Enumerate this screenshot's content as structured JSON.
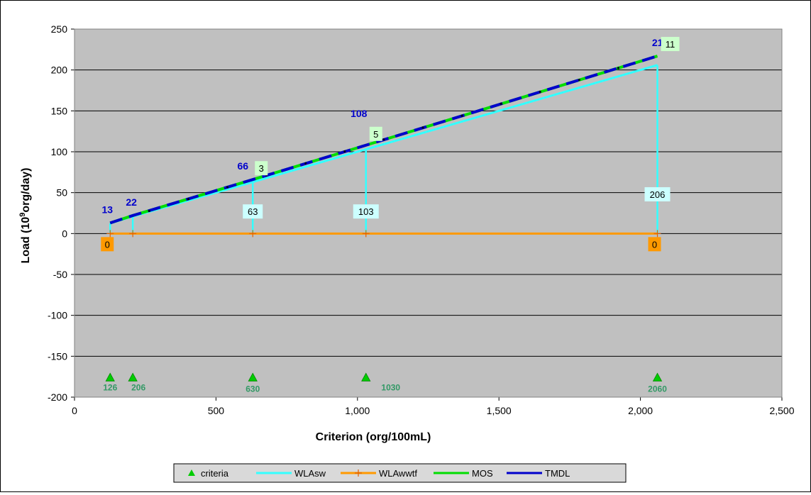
{
  "chart_data": {
    "type": "line",
    "xlabel": "Criterion (org/100mL)",
    "ylabel_prefix": "Load (10",
    "ylabel_sup": "9",
    "ylabel_suffix": "org/day)",
    "xlim": [
      0,
      2500
    ],
    "ylim": [
      -200,
      250
    ],
    "xticks": [
      0,
      500,
      1000,
      1500,
      2000,
      2500
    ],
    "xtick_labels": [
      "0",
      "500",
      "1,000",
      "1,500",
      "2,000",
      "2,500"
    ],
    "yticks": [
      -200,
      -150,
      -100,
      -50,
      0,
      50,
      100,
      150,
      200,
      250
    ],
    "ytick_labels": [
      "-200",
      "-150",
      "-100",
      "-50",
      "0",
      "50",
      "100",
      "150",
      "200",
      "250"
    ],
    "grid": "horizontal",
    "plot_background": "#c0c0c0",
    "legend_position": "bottom",
    "series": [
      {
        "name": "criteria",
        "color": "#00cc00",
        "marker": "triangle",
        "x": [
          126,
          206,
          630,
          1030,
          2060
        ],
        "y": [
          -176,
          -176,
          -176,
          -176,
          -176
        ],
        "labels": [
          "126",
          "206",
          "630",
          "1030",
          "2060"
        ]
      },
      {
        "name": "WLAsw",
        "color": "#33ffff",
        "x": [
          126,
          206,
          630,
          1030,
          2060
        ],
        "y": [
          12.5,
          20.9,
          63,
          103,
          206
        ],
        "labels": [
          "",
          "",
          "63",
          "103",
          "206"
        ]
      },
      {
        "name": "WLAwwtf",
        "color": "#ff9900",
        "marker": "plus",
        "x": [
          126,
          206,
          630,
          1030,
          2060
        ],
        "y": [
          0,
          0,
          0,
          0,
          0
        ],
        "labels": [
          "0",
          "",
          "",
          "",
          "0"
        ]
      },
      {
        "name": "MOS",
        "color": "#00dd00",
        "x": [
          126,
          206,
          630,
          1030,
          2060
        ],
        "y": [
          13,
          22,
          66,
          108,
          217
        ],
        "labels": [
          "",
          "",
          "3",
          "5",
          "11"
        ]
      },
      {
        "name": "TMDL",
        "color": "#0000cc",
        "x": [
          126,
          206,
          630,
          1030,
          2060
        ],
        "y": [
          13,
          22,
          66,
          108,
          217
        ],
        "labels": [
          "13",
          "22",
          "66",
          "108",
          "217"
        ]
      }
    ]
  }
}
